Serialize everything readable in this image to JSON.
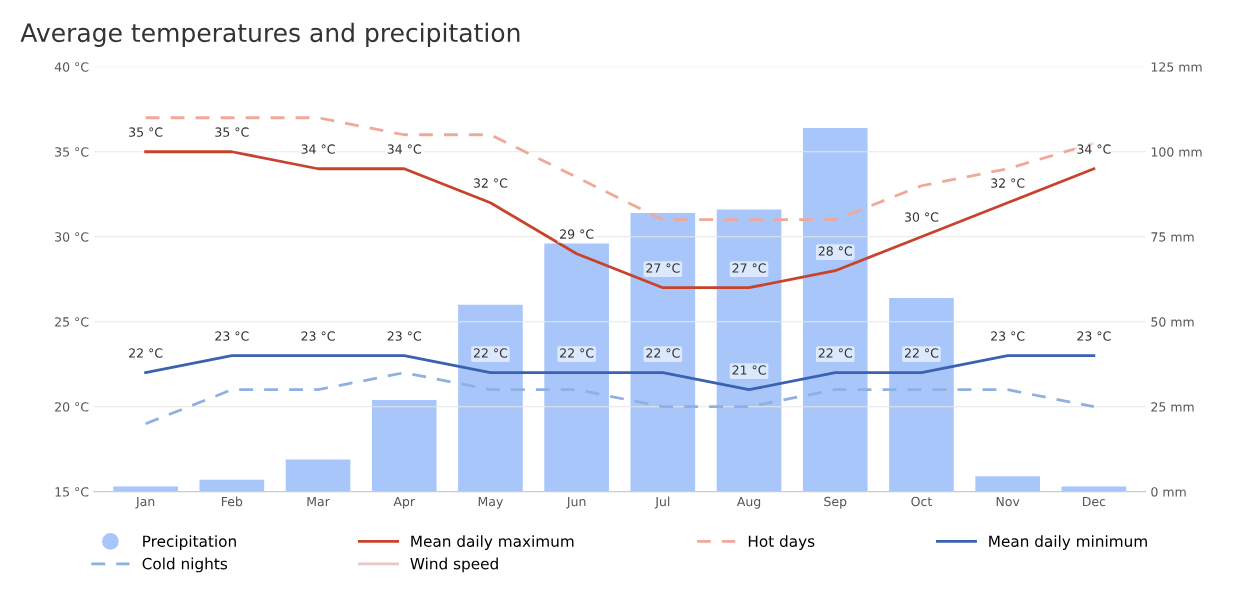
{
  "chart_data": {
    "type": "line",
    "title": "Average temperatures and precipitation",
    "categories": [
      "Jan",
      "Feb",
      "Mar",
      "Apr",
      "May",
      "Jun",
      "Jul",
      "Aug",
      "Sep",
      "Oct",
      "Nov",
      "Dec"
    ],
    "series": [
      {
        "name": "Precipitation",
        "type": "bar",
        "axis": "y2",
        "color": "#a8c6fa",
        "values": [
          1.5,
          3.5,
          9.5,
          27,
          55,
          73,
          82,
          83,
          107,
          57,
          4.5,
          1.5
        ]
      },
      {
        "name": "Mean daily maximum",
        "color": "#c8432c",
        "line_style": "solid",
        "values": [
          35,
          35,
          34,
          34,
          32,
          29,
          27,
          27,
          28,
          30,
          32,
          34
        ],
        "value_labels": [
          "35 °C",
          "35 °C",
          "34 °C",
          "34 °C",
          "32 °C",
          "29 °C",
          "27 °C",
          "27 °C",
          "28 °C",
          "30 °C",
          "32 °C",
          "34 °C"
        ]
      },
      {
        "name": "Hot days",
        "color": "#f0a89a",
        "line_style": "dashed",
        "values": [
          37,
          37,
          37,
          36,
          36,
          33.5,
          31,
          31,
          31,
          33,
          34,
          35.5
        ]
      },
      {
        "name": "Mean daily minimum",
        "color": "#3a62b0",
        "line_style": "solid",
        "values": [
          22,
          23,
          23,
          23,
          22,
          22,
          22,
          21,
          22,
          22,
          23,
          23
        ],
        "value_labels": [
          "22 °C",
          "23 °C",
          "23 °C",
          "23 °C",
          "22 °C",
          "22 °C",
          "22 °C",
          "21 °C",
          "22 °C",
          "22 °C",
          "23 °C",
          "23 °C"
        ]
      },
      {
        "name": "Cold nights",
        "color": "#8fb0e0",
        "line_style": "dashed",
        "values": [
          19,
          21,
          21,
          22,
          21,
          21,
          20,
          20,
          21,
          21,
          21,
          20
        ]
      },
      {
        "name": "Wind speed",
        "color": "#e6c8c8",
        "line_style": "solid",
        "values": [
          null,
          null,
          null,
          null,
          null,
          null,
          null,
          null,
          null,
          null,
          null,
          null
        ]
      }
    ],
    "ylim": [
      15,
      40
    ],
    "yticks": [
      {
        "value": 15,
        "label": "15 °C"
      },
      {
        "value": 20,
        "label": "20 °C"
      },
      {
        "value": 25,
        "label": "25 °C"
      },
      {
        "value": 30,
        "label": "30 °C"
      },
      {
        "value": 35,
        "label": "35 °C"
      },
      {
        "value": 40,
        "label": "40 °C"
      }
    ],
    "y2lim": [
      0,
      125
    ],
    "y2ticks": [
      {
        "value": 0,
        "label": "0 mm"
      },
      {
        "value": 25,
        "label": "25 mm"
      },
      {
        "value": 50,
        "label": "50 mm"
      },
      {
        "value": 75,
        "label": "75 mm"
      },
      {
        "value": 100,
        "label": "100 mm"
      },
      {
        "value": 125,
        "label": "125 mm"
      }
    ],
    "grid": "y",
    "legend": "bottom",
    "marker": "none"
  }
}
